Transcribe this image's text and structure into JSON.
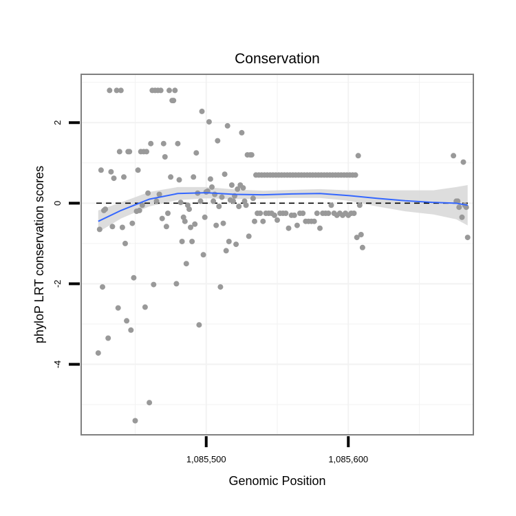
{
  "chart_data": {
    "type": "scatter",
    "title": "Conservation",
    "xlabel": "Genomic Position",
    "ylabel": "phyloP LRT conservation scores",
    "xlim": [
      1085412,
      1085688
    ],
    "ylim": [
      -5.75,
      3.2
    ],
    "x_ticks": [
      {
        "value": 1085500,
        "label": "1,085,500"
      },
      {
        "value": 1085600,
        "label": "1,085,600"
      }
    ],
    "y_ticks": [
      {
        "value": 2,
        "label": "2"
      },
      {
        "value": 0,
        "label": "0"
      },
      {
        "value": -2,
        "label": "-2"
      },
      {
        "value": -4,
        "label": "-4"
      }
    ],
    "reference_line": {
      "y": 0,
      "style": "dashed"
    },
    "colors": {
      "points": "#999999",
      "smooth": "#3366ff",
      "band": "#d9d9d9",
      "frame": "#7f7f7f",
      "grid": "#f2f2f2",
      "reference": "#000000"
    },
    "points": [
      {
        "x": 1085424,
        "y": -3.72
      },
      {
        "x": 1085425,
        "y": -0.65
      },
      {
        "x": 1085426,
        "y": 0.82
      },
      {
        "x": 1085427,
        "y": -2.08
      },
      {
        "x": 1085428,
        "y": -0.18
      },
      {
        "x": 1085429,
        "y": -0.15
      },
      {
        "x": 1085431,
        "y": -3.35
      },
      {
        "x": 1085432,
        "y": 2.8
      },
      {
        "x": 1085433,
        "y": 0.78
      },
      {
        "x": 1085434,
        "y": -0.58
      },
      {
        "x": 1085435,
        "y": 0.62
      },
      {
        "x": 1085437,
        "y": 2.8
      },
      {
        "x": 1085438,
        "y": -2.6
      },
      {
        "x": 1085439,
        "y": 1.28
      },
      {
        "x": 1085440,
        "y": 2.8
      },
      {
        "x": 1085441,
        "y": -0.6
      },
      {
        "x": 1085442,
        "y": 0.65
      },
      {
        "x": 1085443,
        "y": -1.0
      },
      {
        "x": 1085444,
        "y": -2.92
      },
      {
        "x": 1085445,
        "y": 1.28
      },
      {
        "x": 1085446,
        "y": 1.28
      },
      {
        "x": 1085447,
        "y": -3.15
      },
      {
        "x": 1085448,
        "y": -0.5
      },
      {
        "x": 1085449,
        "y": -1.85
      },
      {
        "x": 1085450,
        "y": -5.4
      },
      {
        "x": 1085451,
        "y": -0.2
      },
      {
        "x": 1085452,
        "y": 0.82
      },
      {
        "x": 1085453,
        "y": -0.18
      },
      {
        "x": 1085454,
        "y": 1.28
      },
      {
        "x": 1085455,
        "y": -0.05
      },
      {
        "x": 1085456,
        "y": 1.28
      },
      {
        "x": 1085457,
        "y": -2.58
      },
      {
        "x": 1085458,
        "y": 1.28
      },
      {
        "x": 1085459,
        "y": 0.25
      },
      {
        "x": 1085460,
        "y": -4.95
      },
      {
        "x": 1085461,
        "y": 1.48
      },
      {
        "x": 1085462,
        "y": 2.8
      },
      {
        "x": 1085463,
        "y": -2.02
      },
      {
        "x": 1085464,
        "y": 2.8
      },
      {
        "x": 1085465,
        "y": 0.05
      },
      {
        "x": 1085466,
        "y": 2.8
      },
      {
        "x": 1085467,
        "y": 0.22
      },
      {
        "x": 1085468,
        "y": 2.8
      },
      {
        "x": 1085469,
        "y": -0.38
      },
      {
        "x": 1085470,
        "y": 1.48
      },
      {
        "x": 1085471,
        "y": 1.15
      },
      {
        "x": 1085472,
        "y": -0.58
      },
      {
        "x": 1085473,
        "y": -0.25
      },
      {
        "x": 1085474,
        "y": 2.8
      },
      {
        "x": 1085475,
        "y": 0.65
      },
      {
        "x": 1085476,
        "y": 2.55
      },
      {
        "x": 1085477,
        "y": 2.55
      },
      {
        "x": 1085478,
        "y": 2.8
      },
      {
        "x": 1085479,
        "y": -2.0
      },
      {
        "x": 1085480,
        "y": 1.48
      },
      {
        "x": 1085481,
        "y": 0.58
      },
      {
        "x": 1085482,
        "y": 0.02
      },
      {
        "x": 1085483,
        "y": -0.95
      },
      {
        "x": 1085484,
        "y": -0.35
      },
      {
        "x": 1085485,
        "y": -0.45
      },
      {
        "x": 1085486,
        "y": -1.5
      },
      {
        "x": 1085487,
        "y": -0.05
      },
      {
        "x": 1085488,
        "y": -0.15
      },
      {
        "x": 1085489,
        "y": -0.6
      },
      {
        "x": 1085490,
        "y": -0.95
      },
      {
        "x": 1085491,
        "y": 0.65
      },
      {
        "x": 1085492,
        "y": -0.52
      },
      {
        "x": 1085493,
        "y": 1.25
      },
      {
        "x": 1085494,
        "y": 0.25
      },
      {
        "x": 1085495,
        "y": -3.02
      },
      {
        "x": 1085496,
        "y": 0.05
      },
      {
        "x": 1085497,
        "y": 2.28
      },
      {
        "x": 1085498,
        "y": -1.28
      },
      {
        "x": 1085499,
        "y": -0.35
      },
      {
        "x": 1085500,
        "y": 0.28
      },
      {
        "x": 1085501,
        "y": 0.3
      },
      {
        "x": 1085502,
        "y": 2.02
      },
      {
        "x": 1085503,
        "y": 0.6
      },
      {
        "x": 1085504,
        "y": 0.4
      },
      {
        "x": 1085505,
        "y": 0.05
      },
      {
        "x": 1085506,
        "y": 0.22
      },
      {
        "x": 1085507,
        "y": -0.55
      },
      {
        "x": 1085508,
        "y": 1.55
      },
      {
        "x": 1085509,
        "y": -0.08
      },
      {
        "x": 1085510,
        "y": -2.08
      },
      {
        "x": 1085511,
        "y": 0.15
      },
      {
        "x": 1085512,
        "y": -0.5
      },
      {
        "x": 1085513,
        "y": 0.72
      },
      {
        "x": 1085514,
        "y": -1.18
      },
      {
        "x": 1085515,
        "y": 1.92
      },
      {
        "x": 1085516,
        "y": -0.95
      },
      {
        "x": 1085517,
        "y": 0.08
      },
      {
        "x": 1085518,
        "y": 0.45
      },
      {
        "x": 1085519,
        "y": 0.05
      },
      {
        "x": 1085520,
        "y": 0.18
      },
      {
        "x": 1085521,
        "y": -1.02
      },
      {
        "x": 1085522,
        "y": 0.35
      },
      {
        "x": 1085523,
        "y": -0.08
      },
      {
        "x": 1085524,
        "y": 0.45
      },
      {
        "x": 1085525,
        "y": 1.75
      },
      {
        "x": 1085526,
        "y": 0.38
      },
      {
        "x": 1085527,
        "y": 0.05
      },
      {
        "x": 1085528,
        "y": -0.05
      },
      {
        "x": 1085529,
        "y": 1.2
      },
      {
        "x": 1085530,
        "y": -0.82
      },
      {
        "x": 1085531,
        "y": 1.2
      },
      {
        "x": 1085532,
        "y": 1.2
      },
      {
        "x": 1085533,
        "y": 0.12
      },
      {
        "x": 1085534,
        "y": -0.45
      },
      {
        "x": 1085535,
        "y": 0.7
      },
      {
        "x": 1085536,
        "y": -0.25
      },
      {
        "x": 1085537,
        "y": 0.7
      },
      {
        "x": 1085538,
        "y": -0.25
      },
      {
        "x": 1085539,
        "y": 0.7
      },
      {
        "x": 1085540,
        "y": -0.45
      },
      {
        "x": 1085541,
        "y": 0.7
      },
      {
        "x": 1085542,
        "y": -0.25
      },
      {
        "x": 1085543,
        "y": 0.7
      },
      {
        "x": 1085544,
        "y": -0.25
      },
      {
        "x": 1085545,
        "y": 0.7
      },
      {
        "x": 1085546,
        "y": -0.25
      },
      {
        "x": 1085547,
        "y": 0.7
      },
      {
        "x": 1085548,
        "y": -0.3
      },
      {
        "x": 1085549,
        "y": 0.7
      },
      {
        "x": 1085550,
        "y": -0.42
      },
      {
        "x": 1085551,
        "y": 0.7
      },
      {
        "x": 1085552,
        "y": -0.25
      },
      {
        "x": 1085553,
        "y": 0.7
      },
      {
        "x": 1085554,
        "y": -0.25
      },
      {
        "x": 1085555,
        "y": 0.7
      },
      {
        "x": 1085556,
        "y": -0.25
      },
      {
        "x": 1085557,
        "y": 0.7
      },
      {
        "x": 1085558,
        "y": -0.62
      },
      {
        "x": 1085559,
        "y": 0.7
      },
      {
        "x": 1085560,
        "y": -0.3
      },
      {
        "x": 1085561,
        "y": 0.7
      },
      {
        "x": 1085562,
        "y": -0.3
      },
      {
        "x": 1085563,
        "y": 0.7
      },
      {
        "x": 1085564,
        "y": -0.55
      },
      {
        "x": 1085565,
        "y": 0.7
      },
      {
        "x": 1085566,
        "y": -0.25
      },
      {
        "x": 1085567,
        "y": 0.7
      },
      {
        "x": 1085568,
        "y": -0.25
      },
      {
        "x": 1085569,
        "y": 0.7
      },
      {
        "x": 1085570,
        "y": -0.45
      },
      {
        "x": 1085571,
        "y": 0.7
      },
      {
        "x": 1085572,
        "y": -0.45
      },
      {
        "x": 1085573,
        "y": 0.7
      },
      {
        "x": 1085574,
        "y": -0.45
      },
      {
        "x": 1085575,
        "y": 0.7
      },
      {
        "x": 1085576,
        "y": -0.45
      },
      {
        "x": 1085577,
        "y": 0.7
      },
      {
        "x": 1085578,
        "y": -0.25
      },
      {
        "x": 1085579,
        "y": 0.7
      },
      {
        "x": 1085580,
        "y": -0.62
      },
      {
        "x": 1085581,
        "y": 0.7
      },
      {
        "x": 1085582,
        "y": -0.25
      },
      {
        "x": 1085583,
        "y": 0.7
      },
      {
        "x": 1085584,
        "y": -0.25
      },
      {
        "x": 1085585,
        "y": 0.7
      },
      {
        "x": 1085586,
        "y": -0.25
      },
      {
        "x": 1085587,
        "y": 0.7
      },
      {
        "x": 1085588,
        "y": -0.05
      },
      {
        "x": 1085589,
        "y": 0.7
      },
      {
        "x": 1085590,
        "y": -0.25
      },
      {
        "x": 1085591,
        "y": 0.7
      },
      {
        "x": 1085592,
        "y": -0.3
      },
      {
        "x": 1085593,
        "y": 0.7
      },
      {
        "x": 1085594,
        "y": -0.25
      },
      {
        "x": 1085595,
        "y": 0.7
      },
      {
        "x": 1085596,
        "y": -0.3
      },
      {
        "x": 1085597,
        "y": 0.7
      },
      {
        "x": 1085598,
        "y": -0.25
      },
      {
        "x": 1085599,
        "y": 0.7
      },
      {
        "x": 1085600,
        "y": -0.3
      },
      {
        "x": 1085601,
        "y": 0.7
      },
      {
        "x": 1085602,
        "y": -0.25
      },
      {
        "x": 1085603,
        "y": 0.7
      },
      {
        "x": 1085604,
        "y": -0.25
      },
      {
        "x": 1085605,
        "y": 0.7
      },
      {
        "x": 1085606,
        "y": -0.85
      },
      {
        "x": 1085607,
        "y": 1.18
      },
      {
        "x": 1085608,
        "y": -0.05
      },
      {
        "x": 1085609,
        "y": -0.78
      },
      {
        "x": 1085610,
        "y": -1.1
      },
      {
        "x": 1085674,
        "y": 1.18
      },
      {
        "x": 1085676,
        "y": 0.05
      },
      {
        "x": 1085677,
        "y": 0.05
      },
      {
        "x": 1085678,
        "y": -0.1
      },
      {
        "x": 1085680,
        "y": -0.35
      },
      {
        "x": 1085681,
        "y": 1.02
      },
      {
        "x": 1085682,
        "y": -0.05
      },
      {
        "x": 1085683,
        "y": -0.1
      },
      {
        "x": 1085684,
        "y": -0.85
      }
    ],
    "smooth": [
      {
        "x": 1085424,
        "y": -0.45,
        "lo": -0.72,
        "hi": -0.18
      },
      {
        "x": 1085440,
        "y": -0.18,
        "lo": -0.38,
        "hi": 0.02
      },
      {
        "x": 1085460,
        "y": 0.1,
        "lo": -0.08,
        "hi": 0.28
      },
      {
        "x": 1085480,
        "y": 0.24,
        "lo": 0.08,
        "hi": 0.4
      },
      {
        "x": 1085500,
        "y": 0.26,
        "lo": 0.12,
        "hi": 0.4
      },
      {
        "x": 1085520,
        "y": 0.22,
        "lo": 0.1,
        "hi": 0.34
      },
      {
        "x": 1085540,
        "y": 0.21,
        "lo": 0.11,
        "hi": 0.31
      },
      {
        "x": 1085560,
        "y": 0.23,
        "lo": 0.13,
        "hi": 0.33
      },
      {
        "x": 1085580,
        "y": 0.24,
        "lo": 0.13,
        "hi": 0.35
      },
      {
        "x": 1085600,
        "y": 0.19,
        "lo": 0.06,
        "hi": 0.32
      },
      {
        "x": 1085620,
        "y": 0.12,
        "lo": -0.08,
        "hi": 0.32
      },
      {
        "x": 1085640,
        "y": 0.06,
        "lo": -0.2,
        "hi": 0.32
      },
      {
        "x": 1085660,
        "y": 0.02,
        "lo": -0.28,
        "hi": 0.32
      },
      {
        "x": 1085676,
        "y": 0.0,
        "lo": -0.4,
        "hi": 0.4
      },
      {
        "x": 1085684,
        "y": -0.05,
        "lo": -0.55,
        "hi": 0.45
      }
    ]
  }
}
